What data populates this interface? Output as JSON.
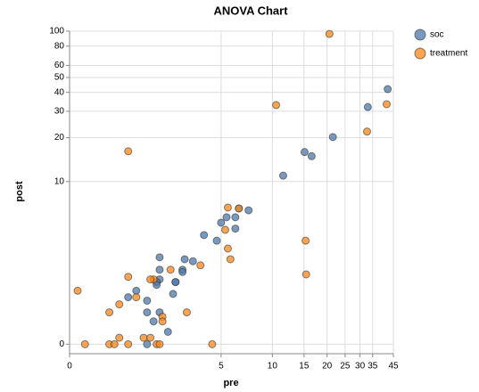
{
  "chart_data": {
    "type": "scatter",
    "title": "ANOVA Chart",
    "x_label": "pre",
    "y_label": "post",
    "x_scale": "symlog",
    "y_scale": "symlog",
    "xlim": [
      0,
      45
    ],
    "ylim": [
      -0.15,
      100
    ],
    "xticks": [
      0,
      5,
      10,
      15,
      20,
      25,
      30,
      35,
      45
    ],
    "yticks": [
      0,
      10,
      20,
      30,
      40,
      50,
      60,
      80,
      100
    ],
    "grid": true,
    "legend": "right",
    "series": [
      {
        "name": "soc",
        "color": "#4c78a8",
        "x": [
          42,
          33,
          21.5,
          15.1,
          16.5,
          11.5,
          7.3,
          6.4,
          6.1,
          5.4,
          5,
          6.1,
          4.7,
          3.9,
          3.3,
          2.9,
          2.8,
          2.8,
          2.5,
          2.5,
          1.9,
          1.9,
          1.9,
          1.9,
          1.8,
          1.8,
          2.4,
          1.5,
          1.2,
          1,
          1.5,
          2.2,
          1.7,
          1.5
        ],
        "y": [
          42,
          32,
          20.2,
          16,
          15,
          11,
          6.2,
          6.4,
          5.5,
          5.5,
          5,
          4.5,
          3.6,
          4,
          2.4,
          2.5,
          2,
          1.9,
          1.5,
          1.5,
          2.6,
          2,
          1.6,
          0.6,
          1.5,
          1.4,
          1.1,
          0.9,
          1.2,
          1,
          0.6,
          0.2,
          0.4,
          0
        ]
      },
      {
        "name": "treatment",
        "color": "#f58518",
        "x": [
          20.6,
          41.5,
          32.7,
          10.5,
          1,
          5.5,
          6.4,
          5.3,
          5.5,
          5.7,
          15.3,
          15.4,
          3.7,
          2.3,
          1.7,
          1.6,
          1,
          0.1,
          0.8,
          0.6,
          1.2,
          3,
          2,
          2,
          1.4,
          1.6,
          0.8,
          0.2,
          0.6,
          0.7,
          1,
          1.8,
          1.9,
          4.4
        ],
        "y": [
          96,
          33.4,
          22,
          33,
          16.2,
          6.5,
          6.4,
          4.4,
          3.1,
          2.5,
          3.6,
          1.8,
          2.2,
          2,
          1.6,
          1.6,
          1.7,
          1.2,
          0.8,
          0.6,
          1,
          0.6,
          0.5,
          0.4,
          0.1,
          0.1,
          0.1,
          0,
          0,
          0,
          0,
          0,
          0,
          0
        ]
      }
    ]
  }
}
